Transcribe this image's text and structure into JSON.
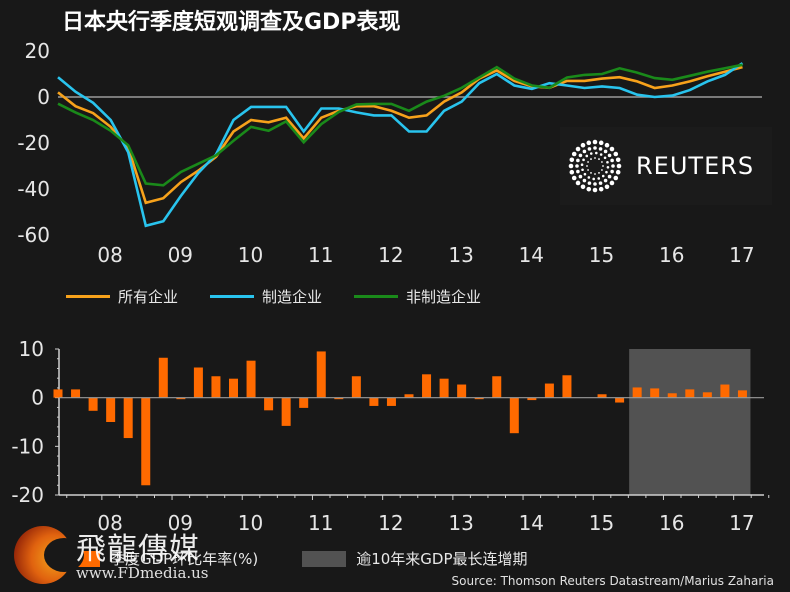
{
  "title": "日本央行季度短观调查及GDP表现",
  "logo": {
    "brand": "REUTERS",
    "icon": "reuters-dot-circle-icon"
  },
  "source": "Source: Thomson Reuters Datastream/Marius Zaharia",
  "watermark": {
    "name": "飛龍傳媒",
    "url": "www.FDmedia.us"
  },
  "colors": {
    "background": "#181818",
    "all": "#f7a21b",
    "manufacturing": "#29c4ee",
    "non_manufacturing": "#1a8a1a",
    "bar": "#ff6a00",
    "highlight": "#525252",
    "zero_line": "#9a9a9a"
  },
  "chart_data": [
    {
      "type": "line",
      "title": "日本央行季度短观调查",
      "xlabel": "",
      "ylabel": "",
      "ylim": [
        -60,
        20
      ],
      "yticks": [
        "20",
        "0",
        "-20",
        "-40",
        "-60"
      ],
      "ytick_values": [
        20,
        0,
        -20,
        -40,
        -60
      ],
      "xticks": [
        "08",
        "09",
        "10",
        "11",
        "12",
        "13",
        "14",
        "15",
        "16",
        "17"
      ],
      "x_start": "2007Q2",
      "frequency": "quarterly",
      "grid": false,
      "legend_position": "bottom",
      "series": [
        {
          "name": "所有企业",
          "color_key": "all",
          "values": [
            2,
            -4,
            -7,
            -13,
            -22,
            -46,
            -44,
            -37,
            -32,
            -26,
            -15,
            -10,
            -11,
            -9,
            -18,
            -9,
            -6,
            -4,
            -4,
            -6,
            -9,
            -8,
            -2,
            2,
            8,
            11.5,
            7,
            4.6,
            4,
            7,
            7,
            8,
            8.6,
            6.8,
            3.9,
            5,
            6.8,
            9,
            11,
            13
          ]
        },
        {
          "name": "制造企业",
          "color_key": "manufacturing",
          "values": [
            8.6,
            2.3,
            -2.5,
            -10,
            -24,
            -56,
            -54,
            -43,
            -33,
            -25,
            -10,
            -4.3,
            -4.3,
            -4.3,
            -15,
            -5,
            -5,
            -6.7,
            -8,
            -8,
            -15,
            -15,
            -6,
            -2,
            6,
            10,
            5,
            3.5,
            6,
            5,
            3.9,
            4.6,
            3.9,
            1,
            0,
            0.6,
            3,
            6.8,
            9.6,
            14.7
          ]
        },
        {
          "name": "非制造企业",
          "color_key": "non_manufacturing",
          "values": [
            -2.9,
            -6.7,
            -10,
            -14.7,
            -21,
            -37.6,
            -38.4,
            -32.6,
            -29,
            -25.4,
            -19,
            -13,
            -14.7,
            -10.6,
            -19.7,
            -11.8,
            -6.5,
            -3.2,
            -3,
            -3,
            -6,
            -2,
            0.5,
            4,
            8.5,
            13,
            8,
            5,
            4,
            8.5,
            9.6,
            10,
            12.5,
            10.6,
            8.2,
            7.5,
            9.2,
            11,
            12.5,
            14
          ]
        }
      ]
    },
    {
      "type": "bar",
      "title": "季度GDP环比年率(%)",
      "xlabel": "",
      "ylabel": "",
      "ylim": [
        -20,
        10
      ],
      "yticks": [
        "10",
        "0",
        "-10",
        "-20"
      ],
      "ytick_values": [
        10,
        0,
        -10,
        -20
      ],
      "xticks": [
        "08",
        "09",
        "10",
        "11",
        "12",
        "13",
        "14",
        "15",
        "16",
        "17"
      ],
      "x_start": "2007Q2",
      "frequency": "quarterly",
      "grid": false,
      "legend_position": "bottom",
      "series": [
        {
          "name": "季度GDP环比年率(%)",
          "color_key": "bar",
          "values": [
            1.7,
            1.7,
            -2.7,
            -5.0,
            -8.3,
            -18.0,
            8.2,
            -0.3,
            6.2,
            4.4,
            3.9,
            7.6,
            -2.6,
            -5.8,
            -2.1,
            9.5,
            -0.3,
            4.4,
            -1.7,
            -1.7,
            0.7,
            4.8,
            3.9,
            2.7,
            -0.3,
            4.4,
            -7.3,
            -0.5,
            2.9,
            4.6,
            0,
            0.7,
            -1.0,
            2.1,
            1.9,
            0.9,
            1.7,
            1.1,
            2.7,
            1.5
          ]
        }
      ],
      "highlight": {
        "label": "逾10年来GDP最长连增期",
        "from_index": 33,
        "to_index": 39
      }
    }
  ]
}
